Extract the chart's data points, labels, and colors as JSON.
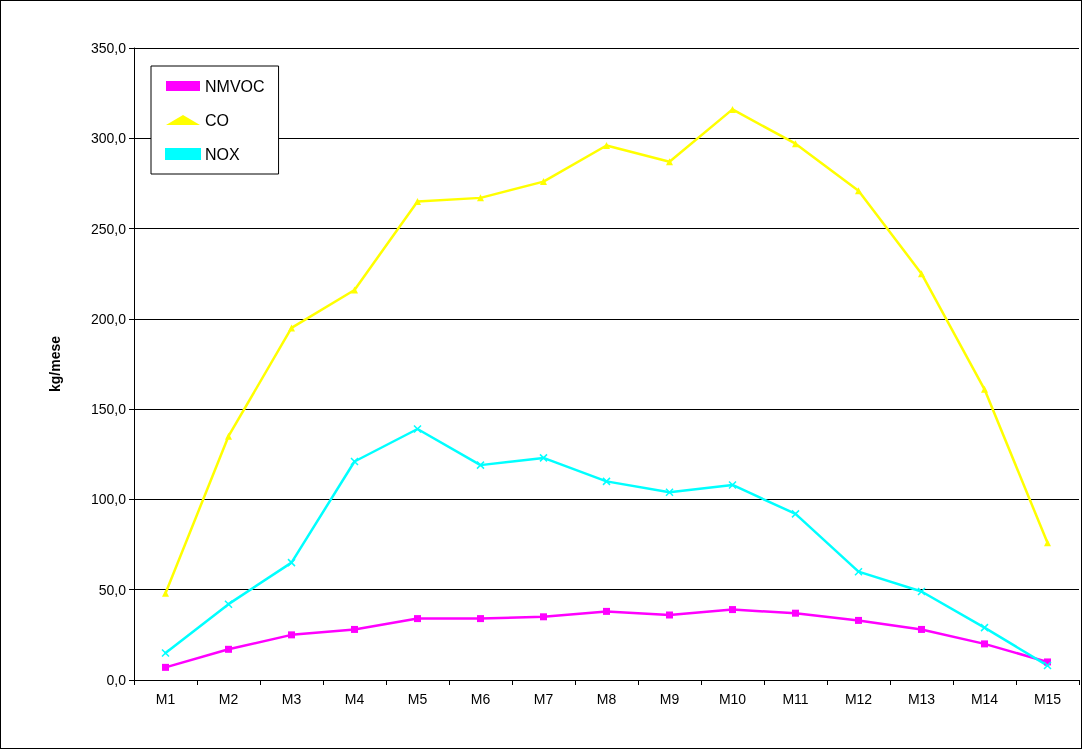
{
  "chart_data": {
    "type": "line",
    "ylabel": "kg/mese",
    "categories": [
      "M1",
      "M2",
      "M3",
      "M4",
      "M5",
      "M6",
      "M7",
      "M8",
      "M9",
      "M10",
      "M11",
      "M12",
      "M13",
      "M14",
      "M15"
    ],
    "series": [
      {
        "name": "NMVOC",
        "color": "#ff00ff",
        "marker": "square",
        "values": [
          7,
          17,
          25,
          28,
          34,
          34,
          35,
          38,
          36,
          39,
          37,
          33,
          28,
          20,
          10
        ]
      },
      {
        "name": "CO",
        "color": "#ffff00",
        "marker": "triangle",
        "values": [
          48,
          135,
          195,
          216,
          265,
          267,
          276,
          296,
          287,
          316,
          297,
          271,
          225,
          161,
          76
        ]
      },
      {
        "name": "NOX",
        "color": "#00ffff",
        "marker": "cross",
        "values": [
          15,
          42,
          65,
          121,
          139,
          119,
          123,
          110,
          104,
          108,
          92,
          60,
          49,
          29,
          8
        ]
      }
    ],
    "ylim": [
      0,
      350
    ],
    "yticks": [
      {
        "value": 0,
        "label": "0,0"
      },
      {
        "value": 50,
        "label": "50,0"
      },
      {
        "value": 100,
        "label": "100,0"
      },
      {
        "value": 150,
        "label": "150,0"
      },
      {
        "value": 200,
        "label": "200,0"
      },
      {
        "value": 250,
        "label": "250,0"
      },
      {
        "value": 300,
        "label": "300,0"
      },
      {
        "value": 350,
        "label": "350,0"
      }
    ],
    "grid": "y",
    "legend": "top left",
    "line_style": "solid"
  }
}
